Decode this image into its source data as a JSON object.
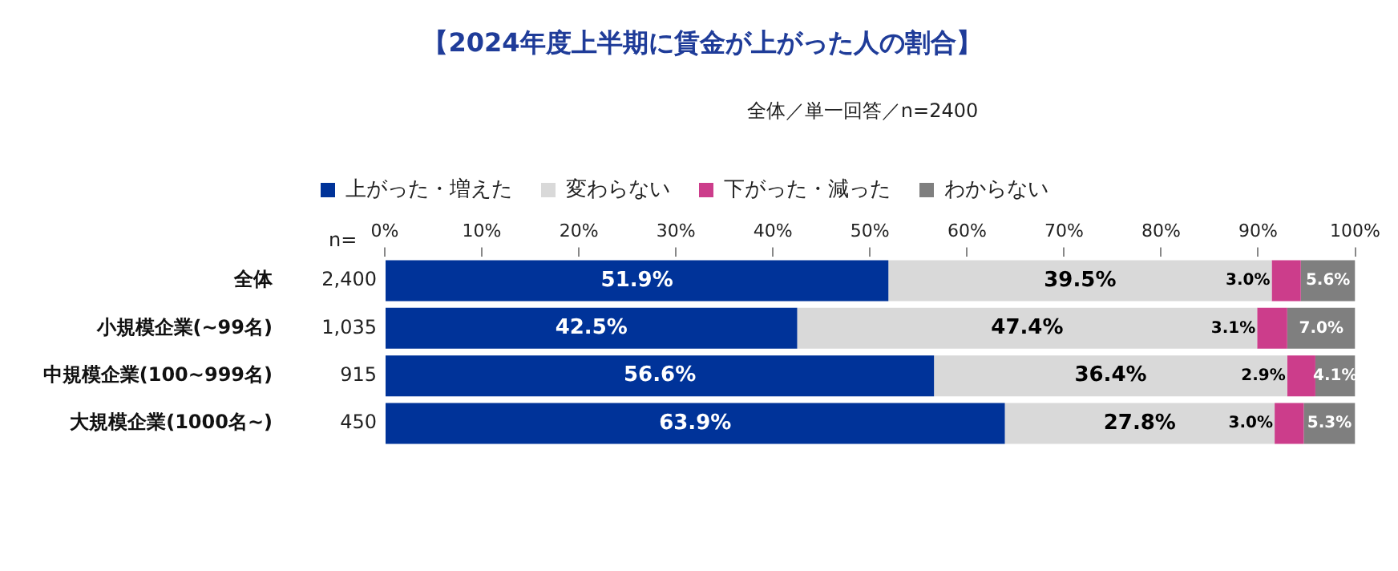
{
  "chart_data": {
    "type": "bar",
    "orientation": "horizontal",
    "stacked": true,
    "title": "【2024年度上半期に賃金が上がった人の割合】",
    "subtitle": "全体／単一回答／n=2400",
    "categories": [
      "全体",
      "小規模企業(~99名)",
      "中規模企業(100~999名)",
      "大規模企業(1000名~)"
    ],
    "series": [
      {
        "name": "上がった・増えた",
        "color": "#003399",
        "values": [
          51.9,
          42.5,
          56.6,
          63.9
        ],
        "value_labels": [
          "51.9%",
          "42.5%",
          "56.6%",
          "63.9%"
        ]
      },
      {
        "name": "変わらない",
        "color": "#d9d9d9",
        "values": [
          39.5,
          47.4,
          36.4,
          27.8
        ],
        "value_labels": [
          "39.5%",
          "47.4%",
          "36.4%",
          "27.8%"
        ]
      },
      {
        "name": "下がった・減った",
        "color": "#cc3d8b",
        "values": [
          3.0,
          3.1,
          2.9,
          3.0
        ],
        "value_labels": [
          "3.0%",
          "3.1%",
          "2.9%",
          "3.0%"
        ]
      },
      {
        "name": "わからない",
        "color": "#7f7f7f",
        "values": [
          5.6,
          7.0,
          4.1,
          5.3
        ],
        "value_labels": [
          "5.6%",
          "7.0%",
          "4.1%",
          "5.3%"
        ]
      }
    ],
    "xlim": [
      0,
      100
    ],
    "xticks": [
      {
        "value": 0,
        "label": "0%"
      },
      {
        "value": 10,
        "label": "10%"
      },
      {
        "value": 20,
        "label": "20%"
      },
      {
        "value": 30,
        "label": "30%"
      },
      {
        "value": 40,
        "label": "40%"
      },
      {
        "value": 50,
        "label": "50%"
      },
      {
        "value": 60,
        "label": "60%"
      },
      {
        "value": 70,
        "label": "70%"
      },
      {
        "value": 80,
        "label": "80%"
      },
      {
        "value": 90,
        "label": "90%"
      },
      {
        "value": 100,
        "label": "100%"
      }
    ],
    "annotations": [
      "n=",
      "2,400",
      "1,035",
      "915",
      "450"
    ],
    "legend": "top",
    "grid": false
  }
}
